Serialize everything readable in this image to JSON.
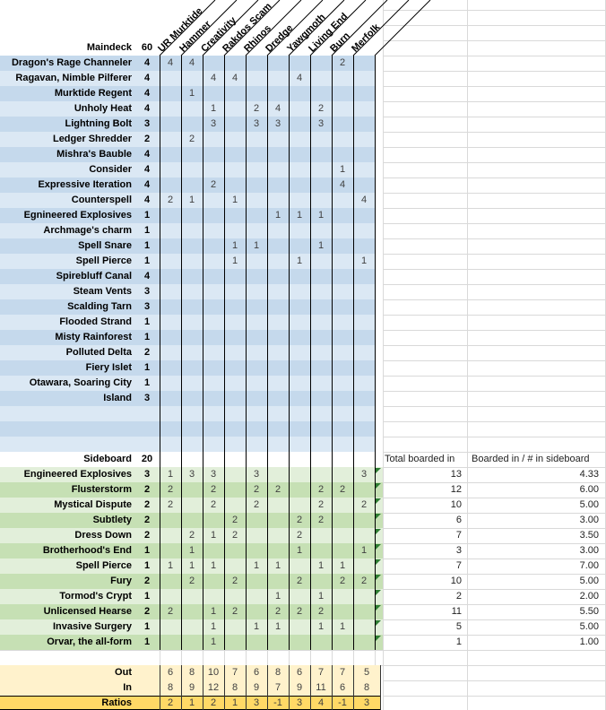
{
  "labels": {
    "maindeck": "Maindeck",
    "maindeck_count": "60",
    "sideboard": "Sideboard",
    "sideboard_count": "20",
    "total_header": "Total boarded in",
    "ratio_header": "Boarded in / # in sideboard",
    "out": "Out",
    "in": "In",
    "ratios": "Ratios"
  },
  "matchups": [
    "UR Murktide",
    "Hammer",
    "Creativity",
    "Rakdos Scam",
    "Rhinos",
    "Dredge",
    "Yawgmoth",
    "Living End",
    "Burn",
    "Merfolk"
  ],
  "maindeck": [
    {
      "name": "Dragon's Rage Channeler",
      "count": 4,
      "cells": [
        4,
        4,
        null,
        null,
        null,
        null,
        null,
        null,
        2,
        null
      ]
    },
    {
      "name": "Ragavan, Nimble Pilferer",
      "count": 4,
      "cells": [
        null,
        null,
        4,
        4,
        null,
        null,
        4,
        null,
        null,
        null
      ]
    },
    {
      "name": "Murktide Regent",
      "count": 4,
      "cells": [
        null,
        1,
        null,
        null,
        null,
        null,
        null,
        null,
        null,
        null
      ]
    },
    {
      "name": "Unholy Heat",
      "count": 4,
      "cells": [
        null,
        null,
        1,
        null,
        2,
        4,
        null,
        2,
        null,
        null
      ]
    },
    {
      "name": "Lightning Bolt",
      "count": 3,
      "cells": [
        null,
        null,
        3,
        null,
        3,
        3,
        null,
        3,
        null,
        null
      ]
    },
    {
      "name": "Ledger Shredder",
      "count": 2,
      "cells": [
        null,
        2,
        null,
        null,
        null,
        null,
        null,
        null,
        null,
        null
      ]
    },
    {
      "name": "Mishra's Bauble",
      "count": 4,
      "cells": [
        null,
        null,
        null,
        null,
        null,
        null,
        null,
        null,
        null,
        null
      ]
    },
    {
      "name": "Consider",
      "count": 4,
      "cells": [
        null,
        null,
        null,
        null,
        null,
        null,
        null,
        null,
        1,
        null
      ]
    },
    {
      "name": "Expressive Iteration",
      "count": 4,
      "cells": [
        null,
        null,
        2,
        null,
        null,
        null,
        null,
        null,
        4,
        null
      ]
    },
    {
      "name": "Counterspell",
      "count": 4,
      "cells": [
        2,
        1,
        null,
        1,
        null,
        null,
        null,
        null,
        null,
        4
      ]
    },
    {
      "name": "Egnineered Explosives",
      "count": 1,
      "cells": [
        null,
        null,
        null,
        null,
        null,
        1,
        1,
        1,
        null,
        null
      ]
    },
    {
      "name": "Archmage's charm",
      "count": 1,
      "cells": [
        null,
        null,
        null,
        null,
        null,
        null,
        null,
        null,
        null,
        null
      ]
    },
    {
      "name": "Spell Snare",
      "count": 1,
      "cells": [
        null,
        null,
        null,
        1,
        1,
        null,
        null,
        1,
        null,
        null
      ]
    },
    {
      "name": "Spell Pierce",
      "count": 1,
      "cells": [
        null,
        null,
        null,
        1,
        null,
        null,
        1,
        null,
        null,
        1
      ]
    },
    {
      "name": "Spirebluff Canal",
      "count": 4,
      "cells": [
        null,
        null,
        null,
        null,
        null,
        null,
        null,
        null,
        null,
        null
      ]
    },
    {
      "name": "Steam Vents",
      "count": 3,
      "cells": [
        null,
        null,
        null,
        null,
        null,
        null,
        null,
        null,
        null,
        null
      ]
    },
    {
      "name": "Scalding Tarn",
      "count": 3,
      "cells": [
        null,
        null,
        null,
        null,
        null,
        null,
        null,
        null,
        null,
        null
      ]
    },
    {
      "name": "Flooded Strand",
      "count": 1,
      "cells": [
        null,
        null,
        null,
        null,
        null,
        null,
        null,
        null,
        null,
        null
      ]
    },
    {
      "name": "Misty Rainforest",
      "count": 1,
      "cells": [
        null,
        null,
        null,
        null,
        null,
        null,
        null,
        null,
        null,
        null
      ]
    },
    {
      "name": "Polluted Delta",
      "count": 2,
      "cells": [
        null,
        null,
        null,
        null,
        null,
        null,
        null,
        null,
        null,
        null
      ]
    },
    {
      "name": "Fiery Islet",
      "count": 1,
      "cells": [
        null,
        null,
        null,
        null,
        null,
        null,
        null,
        null,
        null,
        null
      ]
    },
    {
      "name": "Otawara, Soaring City",
      "count": 1,
      "cells": [
        null,
        null,
        null,
        null,
        null,
        null,
        null,
        null,
        null,
        null
      ]
    },
    {
      "name": "Island",
      "count": 3,
      "cells": [
        null,
        null,
        null,
        null,
        null,
        null,
        null,
        null,
        null,
        null
      ]
    }
  ],
  "sideboard": [
    {
      "name": "Engineered Explosives",
      "count": 3,
      "cells": [
        1,
        3,
        3,
        null,
        3,
        null,
        null,
        null,
        null,
        3
      ],
      "total": 13,
      "ratio": "4.33"
    },
    {
      "name": "Flusterstorm",
      "count": 2,
      "cells": [
        2,
        null,
        2,
        null,
        2,
        2,
        null,
        2,
        2,
        null
      ],
      "total": 12,
      "ratio": "6.00"
    },
    {
      "name": "Mystical Dispute",
      "count": 2,
      "cells": [
        2,
        null,
        2,
        null,
        2,
        null,
        null,
        2,
        null,
        2
      ],
      "total": 10,
      "ratio": "5.00"
    },
    {
      "name": "Subtlety",
      "count": 2,
      "cells": [
        null,
        null,
        null,
        2,
        null,
        null,
        2,
        2,
        null,
        null
      ],
      "total": 6,
      "ratio": "3.00"
    },
    {
      "name": "Dress Down",
      "count": 2,
      "cells": [
        null,
        2,
        1,
        2,
        null,
        null,
        2,
        null,
        null,
        null
      ],
      "total": 7,
      "ratio": "3.50"
    },
    {
      "name": "Brotherhood's End",
      "count": 1,
      "cells": [
        null,
        1,
        null,
        null,
        null,
        null,
        1,
        null,
        null,
        1
      ],
      "total": 3,
      "ratio": "3.00"
    },
    {
      "name": "Spell Pierce",
      "count": 1,
      "cells": [
        1,
        1,
        1,
        null,
        1,
        1,
        null,
        1,
        1,
        null
      ],
      "total": 7,
      "ratio": "7.00"
    },
    {
      "name": "Fury",
      "count": 2,
      "cells": [
        null,
        2,
        null,
        2,
        null,
        null,
        2,
        null,
        2,
        2
      ],
      "total": 10,
      "ratio": "5.00"
    },
    {
      "name": "Tormod's Crypt",
      "count": 1,
      "cells": [
        null,
        null,
        null,
        null,
        null,
        1,
        null,
        1,
        null,
        null
      ],
      "total": 2,
      "ratio": "2.00"
    },
    {
      "name": "Unlicensed Hearse",
      "count": 2,
      "cells": [
        2,
        null,
        1,
        2,
        null,
        2,
        2,
        2,
        null,
        null
      ],
      "total": 11,
      "ratio": "5.50"
    },
    {
      "name": "Invasive Surgery",
      "count": 1,
      "cells": [
        null,
        null,
        1,
        null,
        1,
        1,
        null,
        1,
        1,
        null
      ],
      "total": 5,
      "ratio": "5.00"
    },
    {
      "name": "Orvar, the all-form",
      "count": 1,
      "cells": [
        null,
        null,
        1,
        null,
        null,
        null,
        null,
        null,
        null,
        null
      ],
      "total": 1,
      "ratio": "1.00"
    }
  ],
  "bottom": {
    "out": [
      6,
      8,
      10,
      7,
      6,
      8,
      6,
      7,
      7,
      5
    ],
    "in": [
      8,
      9,
      12,
      8,
      9,
      7,
      9,
      11,
      6,
      8
    ],
    "ratios": [
      2,
      1,
      2,
      1,
      3,
      -1,
      3,
      4,
      -1,
      3
    ]
  },
  "colors": {
    "maindeck_dark": "#c5d9ec",
    "maindeck_light": "#dbe8f4",
    "sideboard_light": "#e2efda",
    "sideboard_dark": "#c6e0b4",
    "bottom_bg": "#fff2cc",
    "ratios_bg": "#ffd966",
    "grid_line": "#000000",
    "faint_line": "#d9d9d9",
    "cell_text": "#3f3f3f",
    "triangle": "#2e7d32"
  }
}
